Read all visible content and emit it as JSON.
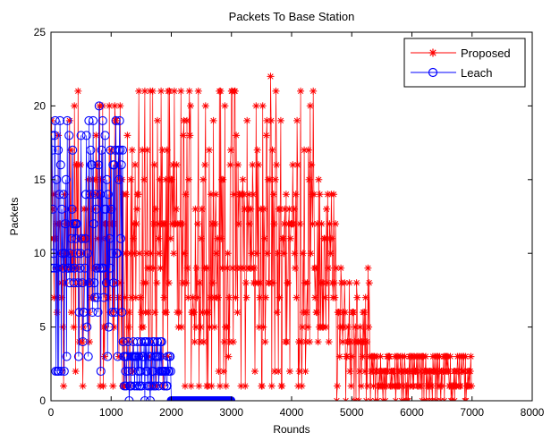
{
  "chart_data": {
    "type": "line",
    "title": "Packets To Base Station",
    "xlabel": "Rounds",
    "ylabel": "Packets",
    "xlim": [
      0,
      8000
    ],
    "ylim": [
      0,
      25
    ],
    "xticks": [
      0,
      1000,
      2000,
      3000,
      4000,
      5000,
      6000,
      7000,
      8000
    ],
    "yticks": [
      0,
      5,
      10,
      15,
      20,
      25
    ],
    "grid": false,
    "legend_position": "top-right",
    "series": [
      {
        "name": "Proposed",
        "color": "#ff0000",
        "marker": "star",
        "segments": [
          {
            "x_start": 0,
            "x_end": 1200,
            "y_min": 1,
            "y_max": 21
          },
          {
            "x_start": 1200,
            "x_end": 4500,
            "y_min": 1,
            "y_max": 22
          },
          {
            "x_start": 4500,
            "x_end": 4750,
            "y_min": 3,
            "y_max": 15
          },
          {
            "x_start": 4750,
            "x_end": 5300,
            "y_min": 0,
            "y_max": 10
          },
          {
            "x_start": 5300,
            "x_end": 7000,
            "y_min": 0,
            "y_max": 4
          }
        ],
        "peaks": [
          {
            "x": 3650,
            "y": 22
          },
          {
            "x": 450,
            "y": 21
          },
          {
            "x": 1650,
            "y": 21
          },
          {
            "x": 2450,
            "y": 21
          },
          {
            "x": 3050,
            "y": 21
          },
          {
            "x": 4150,
            "y": 21
          }
        ]
      },
      {
        "name": "Leach",
        "color": "#0000ff",
        "marker": "circle",
        "segments": [
          {
            "x_start": 0,
            "x_end": 1200,
            "y_min": 2,
            "y_max": 20
          },
          {
            "x_start": 1200,
            "x_end": 2000,
            "y_min": 0,
            "y_max": 5
          },
          {
            "x_start": 2000,
            "x_end": 3000,
            "y_min": 0,
            "y_max": 0
          }
        ],
        "peaks": [
          {
            "x": 800,
            "y": 20
          },
          {
            "x": 150,
            "y": 19
          },
          {
            "x": 700,
            "y": 19
          }
        ]
      }
    ]
  }
}
